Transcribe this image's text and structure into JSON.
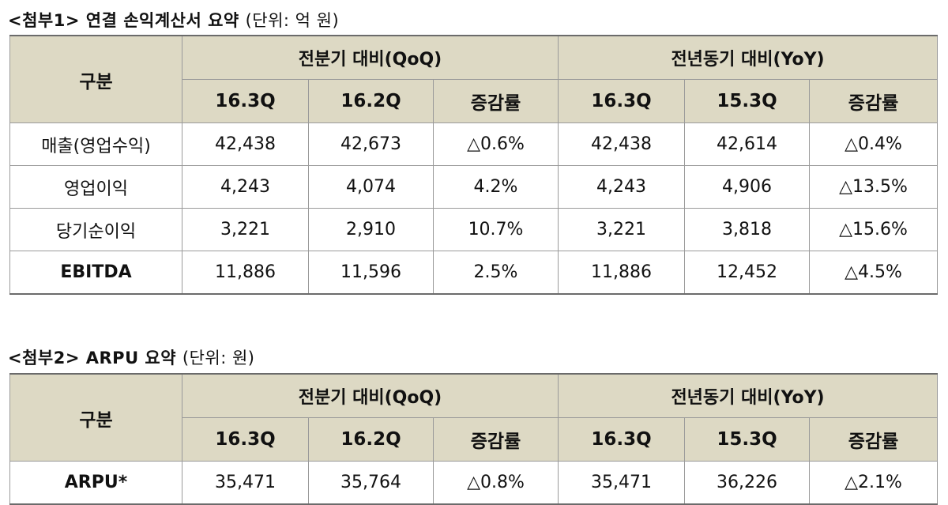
{
  "table1": {
    "title": "<첨부1> 연결 손익계산서 요약",
    "unit": "(단위: 억 원)",
    "label_header": "구분",
    "group_headers": [
      "전분기 대비(QoQ)",
      "전년동기 대비(YoY)"
    ],
    "sub_headers": [
      "16.3Q",
      "16.2Q",
      "증감률",
      "16.3Q",
      "15.3Q",
      "증감률"
    ],
    "rows": [
      {
        "label": "매출(영업수익)",
        "values": [
          "42,438",
          "42,673",
          "△0.6%",
          "42,438",
          "42,614",
          "△0.4%"
        ]
      },
      {
        "label": "영업이익",
        "values": [
          "4,243",
          "4,074",
          "4.2%",
          "4,243",
          "4,906",
          "△13.5%"
        ]
      },
      {
        "label": "당기순이익",
        "values": [
          "3,221",
          "2,910",
          "10.7%",
          "3,221",
          "3,818",
          "△15.6%"
        ]
      },
      {
        "label": "EBITDA",
        "values": [
          "11,886",
          "11,596",
          "2.5%",
          "11,886",
          "12,452",
          "△4.5%"
        ]
      }
    ]
  },
  "table2": {
    "title": "<첨부2> ARPU 요약",
    "unit": "(단위: 원)",
    "label_header": "구분",
    "group_headers": [
      "전분기 대비(QoQ)",
      "전년동기 대비(YoY)"
    ],
    "sub_headers": [
      "16.3Q",
      "16.2Q",
      "증감률",
      "16.3Q",
      "15.3Q",
      "증감률"
    ],
    "rows": [
      {
        "label": "ARPU*",
        "values": [
          "35,471",
          "35,764",
          "△0.8%",
          "35,471",
          "36,226",
          "△2.1%"
        ]
      }
    ]
  },
  "colors": {
    "header_background": "#ddd9c4",
    "border": "#9a9a9a"
  }
}
